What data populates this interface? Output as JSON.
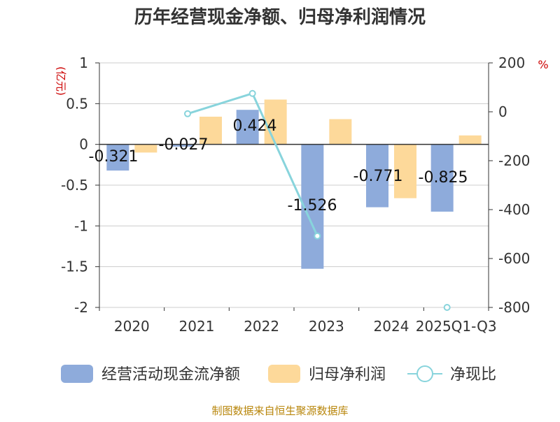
{
  "colors": {
    "bar1": "#8eabdb",
    "bar2": "#fdd99a",
    "line": "#88d4dc",
    "title": "#333333",
    "unit": "#cc0000",
    "source": "#b8860b",
    "axis": "#333333",
    "grid": "#cccccc"
  },
  "chart_data": {
    "type": "bar",
    "title": "历年经营现金净额、归母净利润情况",
    "left_axis_unit": "(亿元)",
    "right_axis_unit": "%",
    "categories": [
      "2020",
      "2021",
      "2022",
      "2023",
      "2024",
      "2025Q1-Q3"
    ],
    "left_ylim": [
      -2,
      1
    ],
    "left_ticks": [
      "1",
      "0.5",
      "0",
      "-0.5",
      "-1",
      "-1.5",
      "-2"
    ],
    "left_tick_values": [
      1,
      0.5,
      0,
      -0.5,
      -1,
      -1.5,
      -2
    ],
    "right_ylim": [
      -800,
      200
    ],
    "right_ticks": [
      "200",
      "0",
      "-200",
      "-400",
      "-600",
      "-800"
    ],
    "right_tick_values": [
      200,
      0,
      -200,
      -400,
      -600,
      -800
    ],
    "series": [
      {
        "name": "经营活动现金流净额",
        "axis": "left",
        "kind": "bar",
        "values": [
          -0.321,
          -0.027,
          0.424,
          -1.526,
          -0.771,
          -0.825
        ],
        "labels": [
          "-0.321",
          "-0.027",
          "0.424",
          "-1.526",
          "-0.771",
          "-0.825"
        ]
      },
      {
        "name": "归母净利润",
        "axis": "left",
        "kind": "bar",
        "values": [
          -0.1,
          0.34,
          0.55,
          0.31,
          -0.66,
          0.11
        ]
      },
      {
        "name": "净现比",
        "axis": "right",
        "kind": "line",
        "values": [
          null,
          -8,
          75,
          -508,
          null,
          -800
        ]
      }
    ],
    "legend": [
      "经营活动现金流净额",
      "归母净利润",
      "净现比"
    ],
    "source": "制图数据来自恒生聚源数据库"
  }
}
